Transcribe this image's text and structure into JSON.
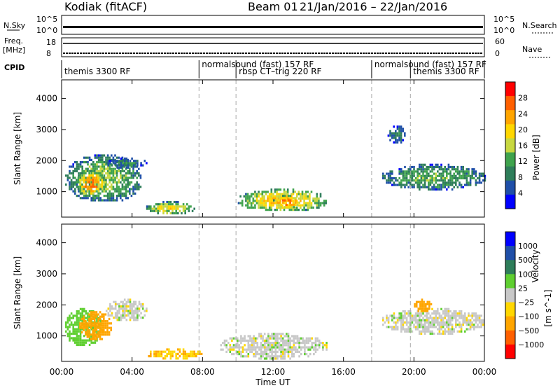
{
  "header": {
    "station": "Kodiak (fitACF)",
    "beam": "Beam 01",
    "dates": "21/Jan/2016 – 22/Jan/2016"
  },
  "strip": {
    "nsky": {
      "label": "N.Sky",
      "ticks": [
        "10^5",
        "10^0"
      ]
    },
    "nsearch": {
      "label": "N.Search",
      "ticks": [
        "10^5",
        "10^0"
      ]
    },
    "freq": {
      "label": "Freq.",
      "unit": "[MHz]",
      "ticks": [
        "18",
        "8"
      ]
    },
    "nave": {
      "label": "Nave",
      "ticks": [
        "60",
        "0"
      ]
    },
    "cpid": {
      "label": "CPID"
    }
  },
  "cpid_segments": [
    {
      "name": "themis 3300 RF",
      "start_hr": 0,
      "end_hr": 7.8
    },
    {
      "name": "normalsound (fast) 157 RF",
      "start_hr": 7.8,
      "end_hr": 9.9
    },
    {
      "name": "rbsp CT–trig 220 RF",
      "start_hr": 9.9,
      "end_hr": 17.6
    },
    {
      "name": "normalsound (fast) 157 RF",
      "start_hr": 17.6,
      "end_hr": 19.8
    },
    {
      "name": "themis 3300 RF",
      "start_hr": 19.8,
      "end_hr": 24
    }
  ],
  "axes": {
    "xlabel": "Time UT",
    "x_ticks": [
      "00:00",
      "04:00",
      "08:00",
      "12:00",
      "16:00",
      "20:00",
      "00:00"
    ],
    "ylabel": "Slant Range [km]",
    "y_ticks": [
      "1000",
      "2000",
      "3000",
      "4000"
    ]
  },
  "power_colorbar": {
    "label": "Power [dB]",
    "ticks": [
      "4",
      "8",
      "12",
      "16",
      "20",
      "24",
      "28"
    ]
  },
  "velocity_colorbar": {
    "label": "Velocity",
    "unit": "[m s^-1]",
    "ticks": [
      "1000",
      "500",
      "100",
      "25",
      "−25",
      "−100",
      "−500",
      "−1000"
    ]
  },
  "colors": {
    "power": [
      "#0000ff",
      "#1f4fa8",
      "#2e7d5a",
      "#3fa34d",
      "#c8d840",
      "#ffd700",
      "#ffa500",
      "#ff6000",
      "#ff0000"
    ],
    "velocity": [
      "#0000ff",
      "#1f4fa8",
      "#2e7d5a",
      "#5fcf30",
      "#c8c8c8",
      "#ffd700",
      "#ffa500",
      "#ff6000",
      "#ff0000"
    ]
  },
  "chart_data": [
    {
      "type": "heatmap",
      "title": "Power",
      "xlabel": "Time UT",
      "ylabel": "Slant Range [km]",
      "xlim_hr": [
        0,
        24
      ],
      "ylim_km": [
        180,
        4600
      ],
      "zlabel": "Power [dB]",
      "zlim": [
        0,
        30
      ],
      "regions": [
        {
          "t0": 0.2,
          "t1": 4.5,
          "r0": 700,
          "r1": 2200,
          "value": 14
        },
        {
          "t0": 0.8,
          "t1": 2.5,
          "r0": 900,
          "r1": 1700,
          "value": 24
        },
        {
          "t0": 2.5,
          "t1": 4.8,
          "r0": 1800,
          "r1": 2100,
          "value": 9
        },
        {
          "t0": 4.8,
          "t1": 7.5,
          "r0": 300,
          "r1": 700,
          "value": 18
        },
        {
          "t0": 10,
          "t1": 15,
          "r0": 400,
          "r1": 1100,
          "value": 20
        },
        {
          "t0": 12,
          "t1": 13.5,
          "r0": 500,
          "r1": 900,
          "value": 26
        },
        {
          "t0": 18.2,
          "t1": 24,
          "r0": 1100,
          "r1": 1900,
          "value": 12
        },
        {
          "t0": 18.5,
          "t1": 19.5,
          "r0": 2600,
          "r1": 3200,
          "value": 8
        }
      ]
    },
    {
      "type": "heatmap",
      "title": "Velocity",
      "xlabel": "Time UT",
      "ylabel": "Slant Range [km]",
      "xlim_hr": [
        0,
        24
      ],
      "ylim_km": [
        180,
        4600
      ],
      "zlabel": "Velocity [m s^-1]",
      "zlim": [
        -1000,
        1000
      ],
      "regions": [
        {
          "t0": 0.2,
          "t1": 2.2,
          "r0": 700,
          "r1": 1900,
          "value": 60
        },
        {
          "t0": 1,
          "t1": 2.8,
          "r0": 900,
          "r1": 1800,
          "value": -300
        },
        {
          "t0": 2.5,
          "t1": 4.8,
          "r0": 1500,
          "r1": 2200,
          "value": 0
        },
        {
          "t0": 4.8,
          "t1": 8,
          "r0": 300,
          "r1": 600,
          "value": -90
        },
        {
          "t0": 9,
          "t1": 15,
          "r0": 300,
          "r1": 1100,
          "value": 0
        },
        {
          "t0": 18.2,
          "t1": 24,
          "r0": 1100,
          "r1": 1900,
          "value": 0
        },
        {
          "t0": 20,
          "t1": 21,
          "r0": 1800,
          "r1": 2200,
          "value": -400
        }
      ]
    }
  ]
}
